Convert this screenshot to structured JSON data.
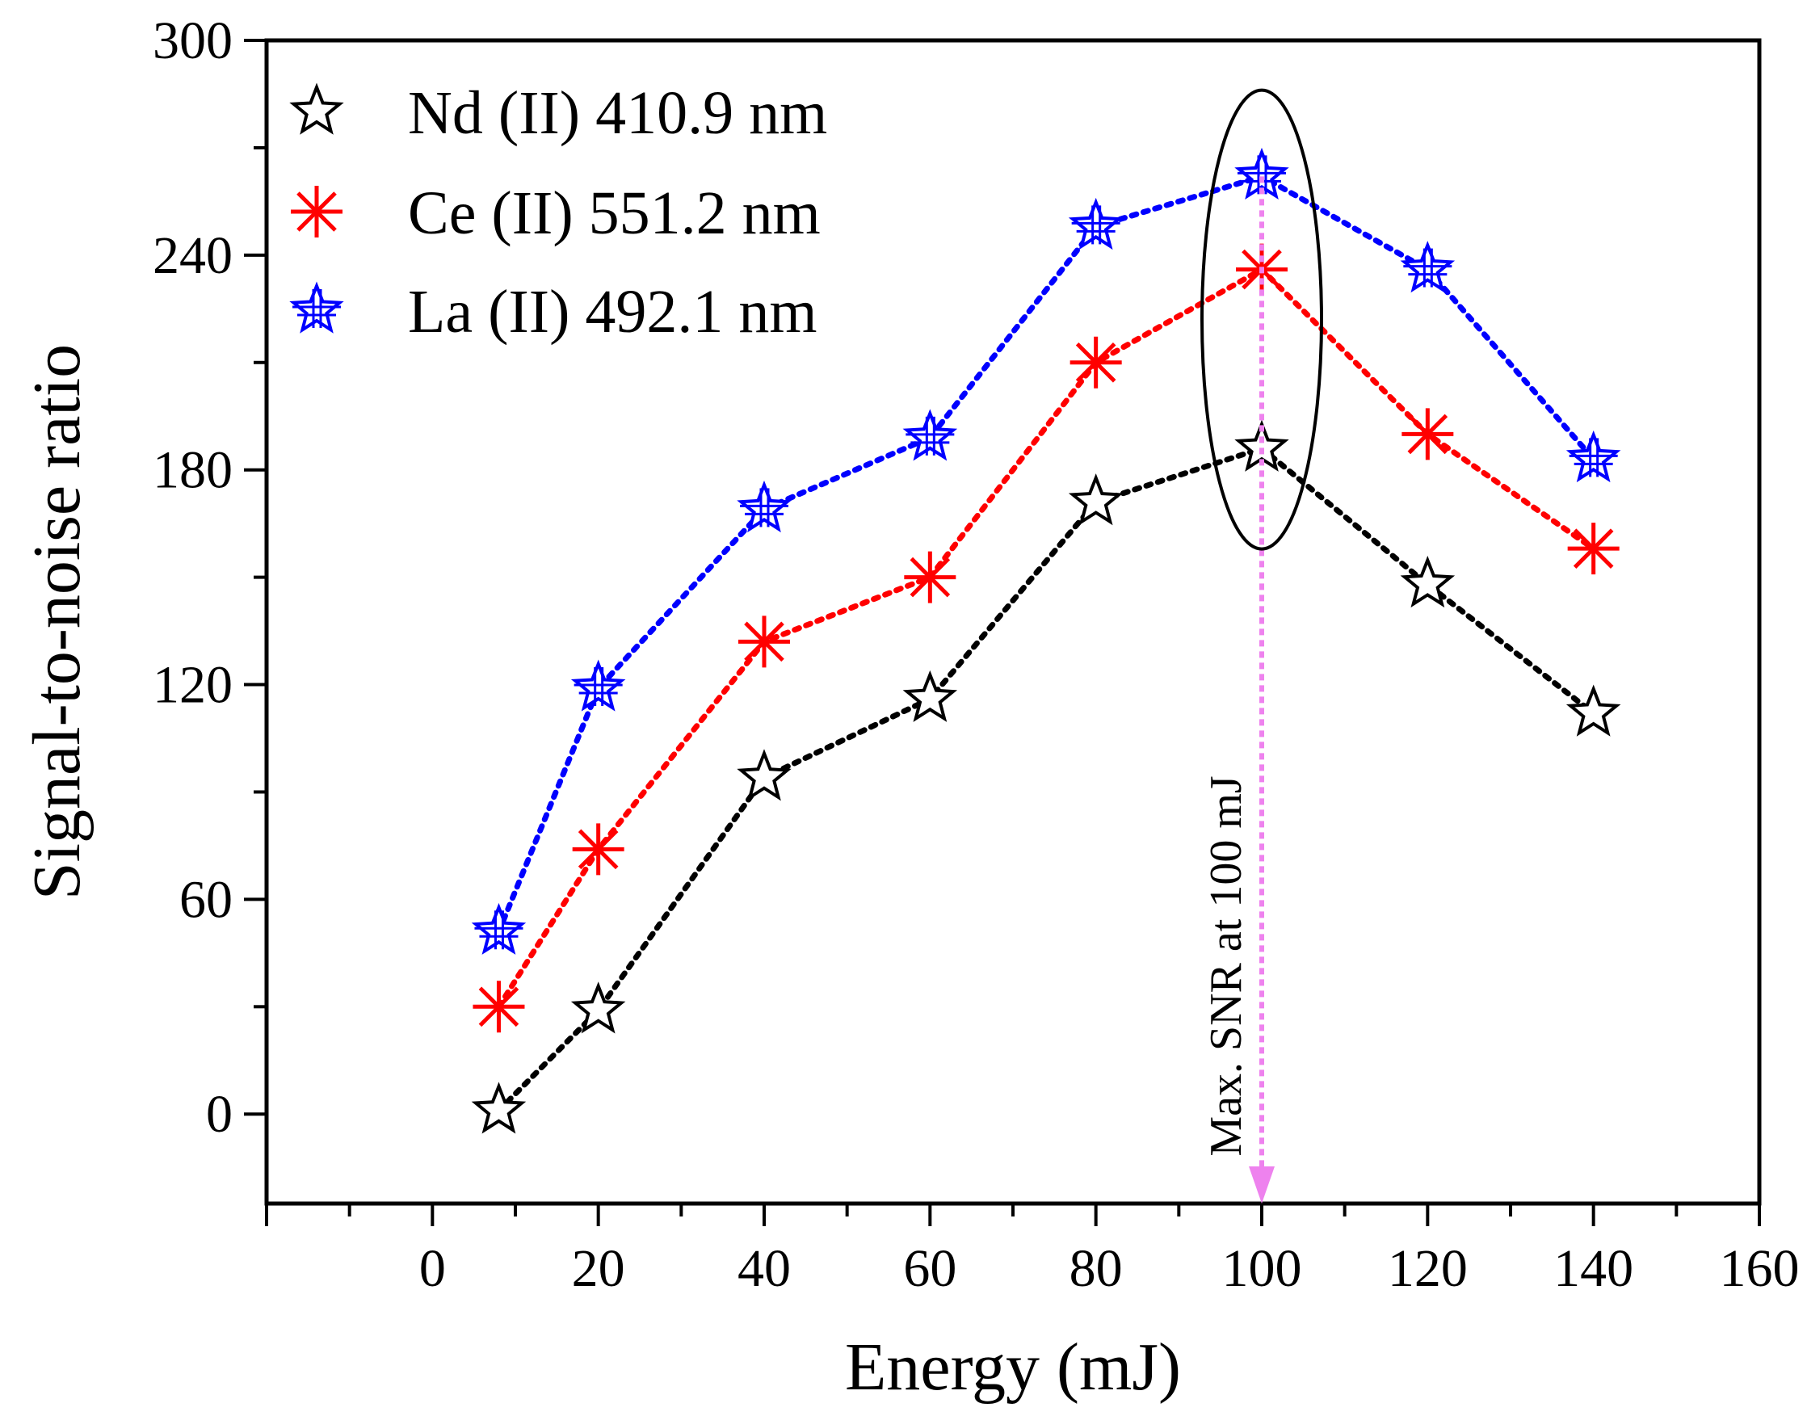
{
  "chart_data": {
    "type": "line",
    "title": "",
    "xlabel": "Energy (mJ)",
    "ylabel": "Signal-to-noise ratio",
    "xlim": [
      -20,
      160
    ],
    "ylim": [
      -25,
      300
    ],
    "x_ticks": [
      0,
      20,
      40,
      60,
      80,
      100,
      120,
      140,
      160
    ],
    "y_ticks": [
      0,
      60,
      120,
      180,
      240,
      300
    ],
    "grid": false,
    "legend_position": "top-left",
    "x": [
      8,
      20,
      40,
      60,
      80,
      100,
      120,
      140
    ],
    "series": [
      {
        "name": "Nd (II) 410.9 nm",
        "marker": "star-open",
        "color": "#000000",
        "values": [
          1,
          29,
          94,
          116,
          171,
          186,
          148,
          112
        ]
      },
      {
        "name": "Ce (II) 551.2 nm",
        "marker": "asterisk",
        "color": "#ff0000",
        "values": [
          30,
          74,
          132,
          150,
          210,
          236,
          190,
          158
        ]
      },
      {
        "name": "La (II) 492.1 nm",
        "marker": "star-hatched",
        "color": "#0000ff",
        "values": [
          51,
          119,
          169,
          189,
          248,
          262,
          236,
          183
        ]
      }
    ],
    "annotation": {
      "text": "Max. SNR at 100 mJ",
      "x": 100,
      "arrow_from_y": 262,
      "arrow_to_y": -25,
      "arrow_color": "#ee82ee",
      "ellipse_center_x": 100,
      "ellipse_center_y": 222,
      "ellipse_color": "#000000"
    }
  }
}
